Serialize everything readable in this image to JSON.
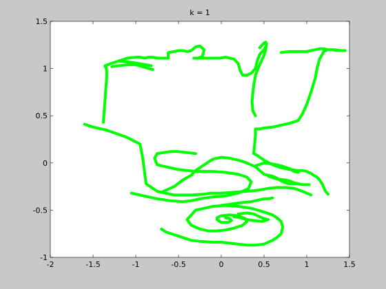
{
  "chart_data": {
    "type": "line",
    "title": "k = 1",
    "xlabel": "",
    "ylabel": "",
    "xlim": [
      -2,
      1.5
    ],
    "ylim": [
      -1,
      1.5
    ],
    "xticks": [
      -2,
      -1.5,
      -1,
      -0.5,
      0,
      0.5,
      1,
      1.5
    ],
    "yticks": [
      -1,
      -0.5,
      0,
      0.5,
      1,
      1.5
    ],
    "xtick_labels": [
      "-2",
      "-1.5",
      "-1",
      "-0.5",
      "0",
      "0.5",
      "1",
      "1.5"
    ],
    "ytick_labels": [
      "-1",
      "-0.5",
      "0",
      "0.5",
      "1",
      "1.5"
    ],
    "grid": false,
    "legend": "none",
    "colors": {
      "figure": "#c8c8c8",
      "axes": "#ffffff",
      "series": "#00ff00"
    },
    "series": [
      {
        "x": [
          -1.6,
          -1.5,
          -1.35,
          -1.1,
          -0.95,
          -0.92,
          -0.9,
          -0.88,
          -0.75,
          -0.55,
          -0.35,
          -0.2,
          -0.12,
          0,
          0.15,
          0.3,
          0.42,
          0.55,
          0.65,
          0.75,
          0.85,
          0.95,
          1,
          1.03,
          1.05
        ],
        "y": [
          0.41,
          0.38,
          0.35,
          0.27,
          0.2,
          0.06,
          -0.08,
          -0.22,
          -0.3,
          -0.34,
          -0.34,
          -0.33,
          -0.32,
          -0.32,
          -0.31,
          -0.3,
          -0.29,
          -0.27,
          -0.26,
          -0.26,
          -0.27,
          -0.3,
          -0.32,
          -0.33,
          -0.34
        ]
      },
      {
        "x": [
          -1.05,
          -0.9,
          -0.75,
          -0.6,
          -0.45,
          -0.35,
          -0.25,
          -0.1,
          0.05,
          0.2,
          0.32,
          0.35,
          0.3,
          0.2,
          0.05,
          -0.1,
          -0.3,
          -0.5,
          -0.65,
          -0.75,
          -0.78,
          -0.75,
          -0.6,
          -0.5,
          -0.4,
          -0.3
        ],
        "y": [
          -0.32,
          -0.35,
          -0.38,
          -0.4,
          -0.41,
          -0.4,
          -0.38,
          -0.36,
          -0.35,
          -0.32,
          -0.27,
          -0.2,
          -0.15,
          -0.12,
          -0.1,
          -0.09,
          -0.09,
          -0.07,
          -0.04,
          -0.02,
          0.05,
          0.1,
          0.12,
          0.12,
          0.11,
          0.1
        ]
      },
      {
        "x": [
          -0.7,
          -0.55,
          -0.45,
          -0.35,
          -0.3,
          -0.25,
          -0.2,
          -0.1,
          0,
          0.1,
          0.2,
          0.3,
          0.4,
          0.45,
          0.5,
          0.55,
          0.6,
          0.65,
          0.7,
          0.75,
          0.8,
          0.85,
          0.9,
          0.95,
          1,
          1.03
        ],
        "y": [
          -0.31,
          -0.25,
          -0.18,
          -0.13,
          -0.08,
          -0.05,
          -0.02,
          0.04,
          0.06,
          0.05,
          0.03,
          0,
          -0.04,
          -0.08,
          -0.12,
          -0.13,
          -0.14,
          -0.16,
          -0.19,
          -0.21,
          -0.22,
          -0.22,
          -0.22,
          -0.23,
          -0.23,
          -0.23
        ]
      },
      {
        "x": [
          0.4,
          0.5,
          0.6,
          0.7,
          0.8,
          0.85,
          0.9
        ],
        "y": [
          -0.03,
          0,
          -0.01,
          -0.03,
          -0.06,
          -0.09,
          -0.1
        ]
      },
      {
        "x": [
          0.55,
          0.65,
          0.75,
          0.8,
          0.85,
          0.9
        ],
        "y": [
          -0.14,
          -0.17,
          -0.18,
          -0.19,
          -0.21,
          -0.22
        ]
      },
      {
        "x": [
          0,
          0.08,
          0.15,
          0.25,
          0.35,
          0.4,
          0.45,
          0.5,
          0.55,
          0.6
        ],
        "y": [
          -0.45,
          -0.44,
          -0.43,
          -0.42,
          -0.41,
          -0.4,
          -0.39,
          -0.38,
          -0.38,
          -0.37
        ]
      },
      {
        "x": [
          -0.7,
          -0.65,
          -0.55,
          -0.45,
          -0.35,
          -0.25,
          -0.1,
          0,
          0.1,
          0.2,
          0.3,
          0.4,
          0.5,
          0.55,
          0.6,
          0.65,
          0.7,
          0.72,
          0.7,
          0.65,
          0.6,
          0.5,
          0.35,
          0.2,
          0.05,
          -0.1,
          -0.2,
          -0.3
        ],
        "y": [
          -0.7,
          -0.73,
          -0.76,
          -0.79,
          -0.82,
          -0.83,
          -0.84,
          -0.84,
          -0.85,
          -0.86,
          -0.87,
          -0.87,
          -0.86,
          -0.84,
          -0.82,
          -0.79,
          -0.75,
          -0.68,
          -0.62,
          -0.58,
          -0.55,
          -0.52,
          -0.48,
          -0.46,
          -0.45,
          -0.46,
          -0.48,
          -0.5
        ]
      },
      {
        "x": [
          -0.3,
          -0.35,
          -0.4,
          -0.35,
          -0.25,
          -0.15,
          -0.05,
          0.05,
          0.15,
          0.25,
          0.3,
          0.28,
          0.2,
          0.1,
          0,
          -0.05
        ],
        "y": [
          -0.5,
          -0.55,
          -0.6,
          -0.66,
          -0.7,
          -0.72,
          -0.72,
          -0.71,
          -0.69,
          -0.66,
          -0.62,
          -0.59,
          -0.56,
          -0.55,
          -0.56,
          -0.58
        ]
      },
      {
        "x": [
          -0.05,
          0,
          0.08,
          0.12,
          0.1,
          0.05
        ],
        "y": [
          -0.6,
          -0.63,
          -0.63,
          -0.61,
          -0.59,
          -0.58
        ]
      },
      {
        "x": [
          0.2,
          0.3,
          0.38,
          0.45,
          0.5,
          0.55,
          0.48,
          0.38,
          0.3,
          0.22,
          0.15
        ],
        "y": [
          -0.54,
          -0.53,
          -0.54,
          -0.57,
          -0.59,
          -0.6,
          -0.62,
          -0.61,
          -0.6,
          -0.58,
          -0.57
        ]
      },
      {
        "x": [
          -1.38,
          -1.37,
          -1.36,
          -1.35,
          -1.34,
          -1.34,
          -1.35,
          -1.36,
          -1.36
        ],
        "y": [
          0.43,
          0.55,
          0.67,
          0.8,
          0.9,
          0.98,
          1.02,
          1.02,
          1.03
        ]
      },
      {
        "x": [
          -1.36,
          -1.3,
          -1.2,
          -1.1,
          -1,
          -0.95,
          -0.9,
          -0.85,
          -0.8,
          -0.75,
          -0.68,
          -0.62,
          -0.62,
          -0.55,
          -0.5,
          -0.45,
          -0.4,
          -0.35,
          -0.3,
          -0.25,
          -0.2,
          -0.22,
          -0.27,
          -0.32
        ],
        "y": [
          1.03,
          1.05,
          1.08,
          1.11,
          1.12,
          1.12,
          1.11,
          1.12,
          1.12,
          1.11,
          1.11,
          1.11,
          1.17,
          1.18,
          1.19,
          1.19,
          1.18,
          1.19,
          1.23,
          1.24,
          1.2,
          1.13,
          1.11,
          1.11
        ]
      },
      {
        "x": [
          -1.28,
          -1.2,
          -1.1,
          -1,
          -0.92,
          -0.85,
          -0.8
        ],
        "y": [
          1.02,
          1.03,
          1.04,
          1.04,
          1.02,
          1.0,
          0.99
        ]
      },
      {
        "x": [
          -1.2,
          -1.1,
          -1,
          -0.95,
          -0.88,
          -0.82
        ],
        "y": [
          1.08,
          1.07,
          1.06,
          1.05,
          1.04,
          1.03
        ]
      },
      {
        "x": [
          -0.32,
          -0.22,
          -0.12,
          -0.02,
          0.05,
          0.1,
          0.15,
          0.2,
          0.22,
          0.25,
          0.3,
          0.35,
          0.4,
          0.42,
          0.45,
          0.5,
          0.52,
          0.53,
          0.52,
          0.5,
          0.48,
          0.45
        ],
        "y": [
          1.11,
          1.11,
          1.11,
          1.11,
          1.12,
          1.11,
          1.1,
          1.05,
          0.98,
          0.93,
          0.93,
          0.95,
          1.0,
          1.08,
          1.15,
          1.2,
          1.23,
          1.26,
          1.28,
          1.27,
          1.25,
          1.22
        ]
      },
      {
        "x": [
          0.53,
          0.52,
          0.5,
          0.47,
          0.43,
          0.4,
          0.38,
          0.37
        ],
        "y": [
          1.26,
          1.2,
          1.14,
          1.08,
          1.0,
          0.93,
          0.82,
          0.75
        ]
      },
      {
        "x": [
          0.37,
          0.36,
          0.37,
          0.4
        ],
        "y": [
          0.75,
          0.65,
          0.55,
          0.5
        ]
      },
      {
        "x": [
          0.7,
          0.8,
          0.9,
          1,
          1.05,
          1.1,
          1.15,
          1.2,
          1.25,
          1.3,
          1.35,
          1.4,
          1.42,
          1.45,
          1.4,
          1.32,
          1.25,
          1.2
        ],
        "y": [
          1.17,
          1.18,
          1.18,
          1.18,
          1.19,
          1.2,
          1.21,
          1.21,
          1.2,
          1.2,
          1.19,
          1.19,
          1.19,
          1.19,
          1.19,
          1.2,
          1.2,
          1.18
        ]
      },
      {
        "x": [
          1.2,
          1.15,
          1.12,
          1.1,
          1.05,
          1.0,
          0.95,
          0.9,
          0.8,
          0.7,
          0.6,
          0.5,
          0.45,
          0.4,
          0.4,
          0.39,
          0.38
        ],
        "y": [
          1.18,
          1.1,
          1.0,
          0.9,
          0.75,
          0.62,
          0.52,
          0.45,
          0.42,
          0.4,
          0.38,
          0.37,
          0.36,
          0.36,
          0.3,
          0.2,
          0.1
        ]
      },
      {
        "x": [
          0.38,
          0.42,
          0.5,
          0.6,
          0.7,
          0.8,
          0.9,
          0.95,
          1,
          1.02,
          1.05,
          1.08,
          1.12,
          1.15,
          1.18,
          1.2,
          1.22,
          1.25
        ],
        "y": [
          0.1,
          0.08,
          0.03,
          -0.02,
          -0.05,
          -0.07,
          -0.08,
          -0.08,
          -0.09,
          -0.1,
          -0.11,
          -0.13,
          -0.15,
          -0.18,
          -0.22,
          -0.26,
          -0.3,
          -0.33
        ]
      }
    ]
  }
}
